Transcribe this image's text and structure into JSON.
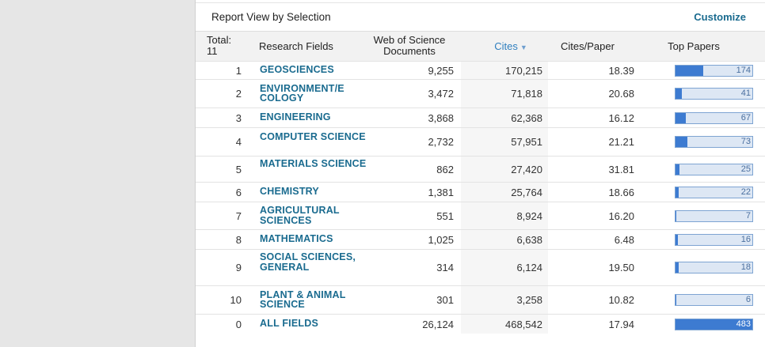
{
  "report": {
    "title": "Report View by Selection",
    "customize_label": "Customize"
  },
  "columns": {
    "total_label": "Total:",
    "total_count": "11",
    "research_fields": "Research Fields",
    "wos_docs_line1": "Web of Science",
    "wos_docs_line2": "Documents",
    "cites": "Cites",
    "cites_sort_icon": "sort-desc-icon",
    "cites_per_paper": "Cites/Paper",
    "top_papers": "Top Papers"
  },
  "top_papers_max": 483,
  "colors": {
    "link": "#1a6b8f",
    "bar_fill": "#3d7bd1",
    "bar_bg": "#dde7f4",
    "sort_header": "#2f7fbf"
  },
  "rows": [
    {
      "rank": "1",
      "field": "GEOSCIENCES",
      "docs": "9,255",
      "cites": "170,215",
      "cpp": "18.39",
      "top": 174
    },
    {
      "rank": "2",
      "field": "ENVIRONMENT/E COLOGY",
      "docs": "3,472",
      "cites": "71,818",
      "cpp": "20.68",
      "top": 41
    },
    {
      "rank": "3",
      "field": "ENGINEERING",
      "docs": "3,868",
      "cites": "62,368",
      "cpp": "16.12",
      "top": 67
    },
    {
      "rank": "4",
      "field": "COMPUTER SCIENCE",
      "docs": "2,732",
      "cites": "57,951",
      "cpp": "21.21",
      "top": 73
    },
    {
      "rank": "5",
      "field": "MATERIALS SCIENCE",
      "docs": "862",
      "cites": "27,420",
      "cpp": "31.81",
      "top": 25
    },
    {
      "rank": "6",
      "field": "CHEMISTRY",
      "docs": "1,381",
      "cites": "25,764",
      "cpp": "18.66",
      "top": 22
    },
    {
      "rank": "7",
      "field": "AGRICULTURAL SCIENCES",
      "docs": "551",
      "cites": "8,924",
      "cpp": "16.20",
      "top": 7
    },
    {
      "rank": "8",
      "field": "MATHEMATICS",
      "docs": "1,025",
      "cites": "6,638",
      "cpp": "6.48",
      "top": 16
    },
    {
      "rank": "9",
      "field": "SOCIAL SCIENCES, GENERAL",
      "docs": "314",
      "cites": "6,124",
      "cpp": "19.50",
      "top": 18
    },
    {
      "rank": "10",
      "field": "PLANT & ANIMAL SCIENCE",
      "docs": "301",
      "cites": "3,258",
      "cpp": "10.82",
      "top": 6
    },
    {
      "rank": "0",
      "field": "ALL FIELDS",
      "docs": "26,124",
      "cites": "468,542",
      "cpp": "17.94",
      "top": 483
    }
  ]
}
